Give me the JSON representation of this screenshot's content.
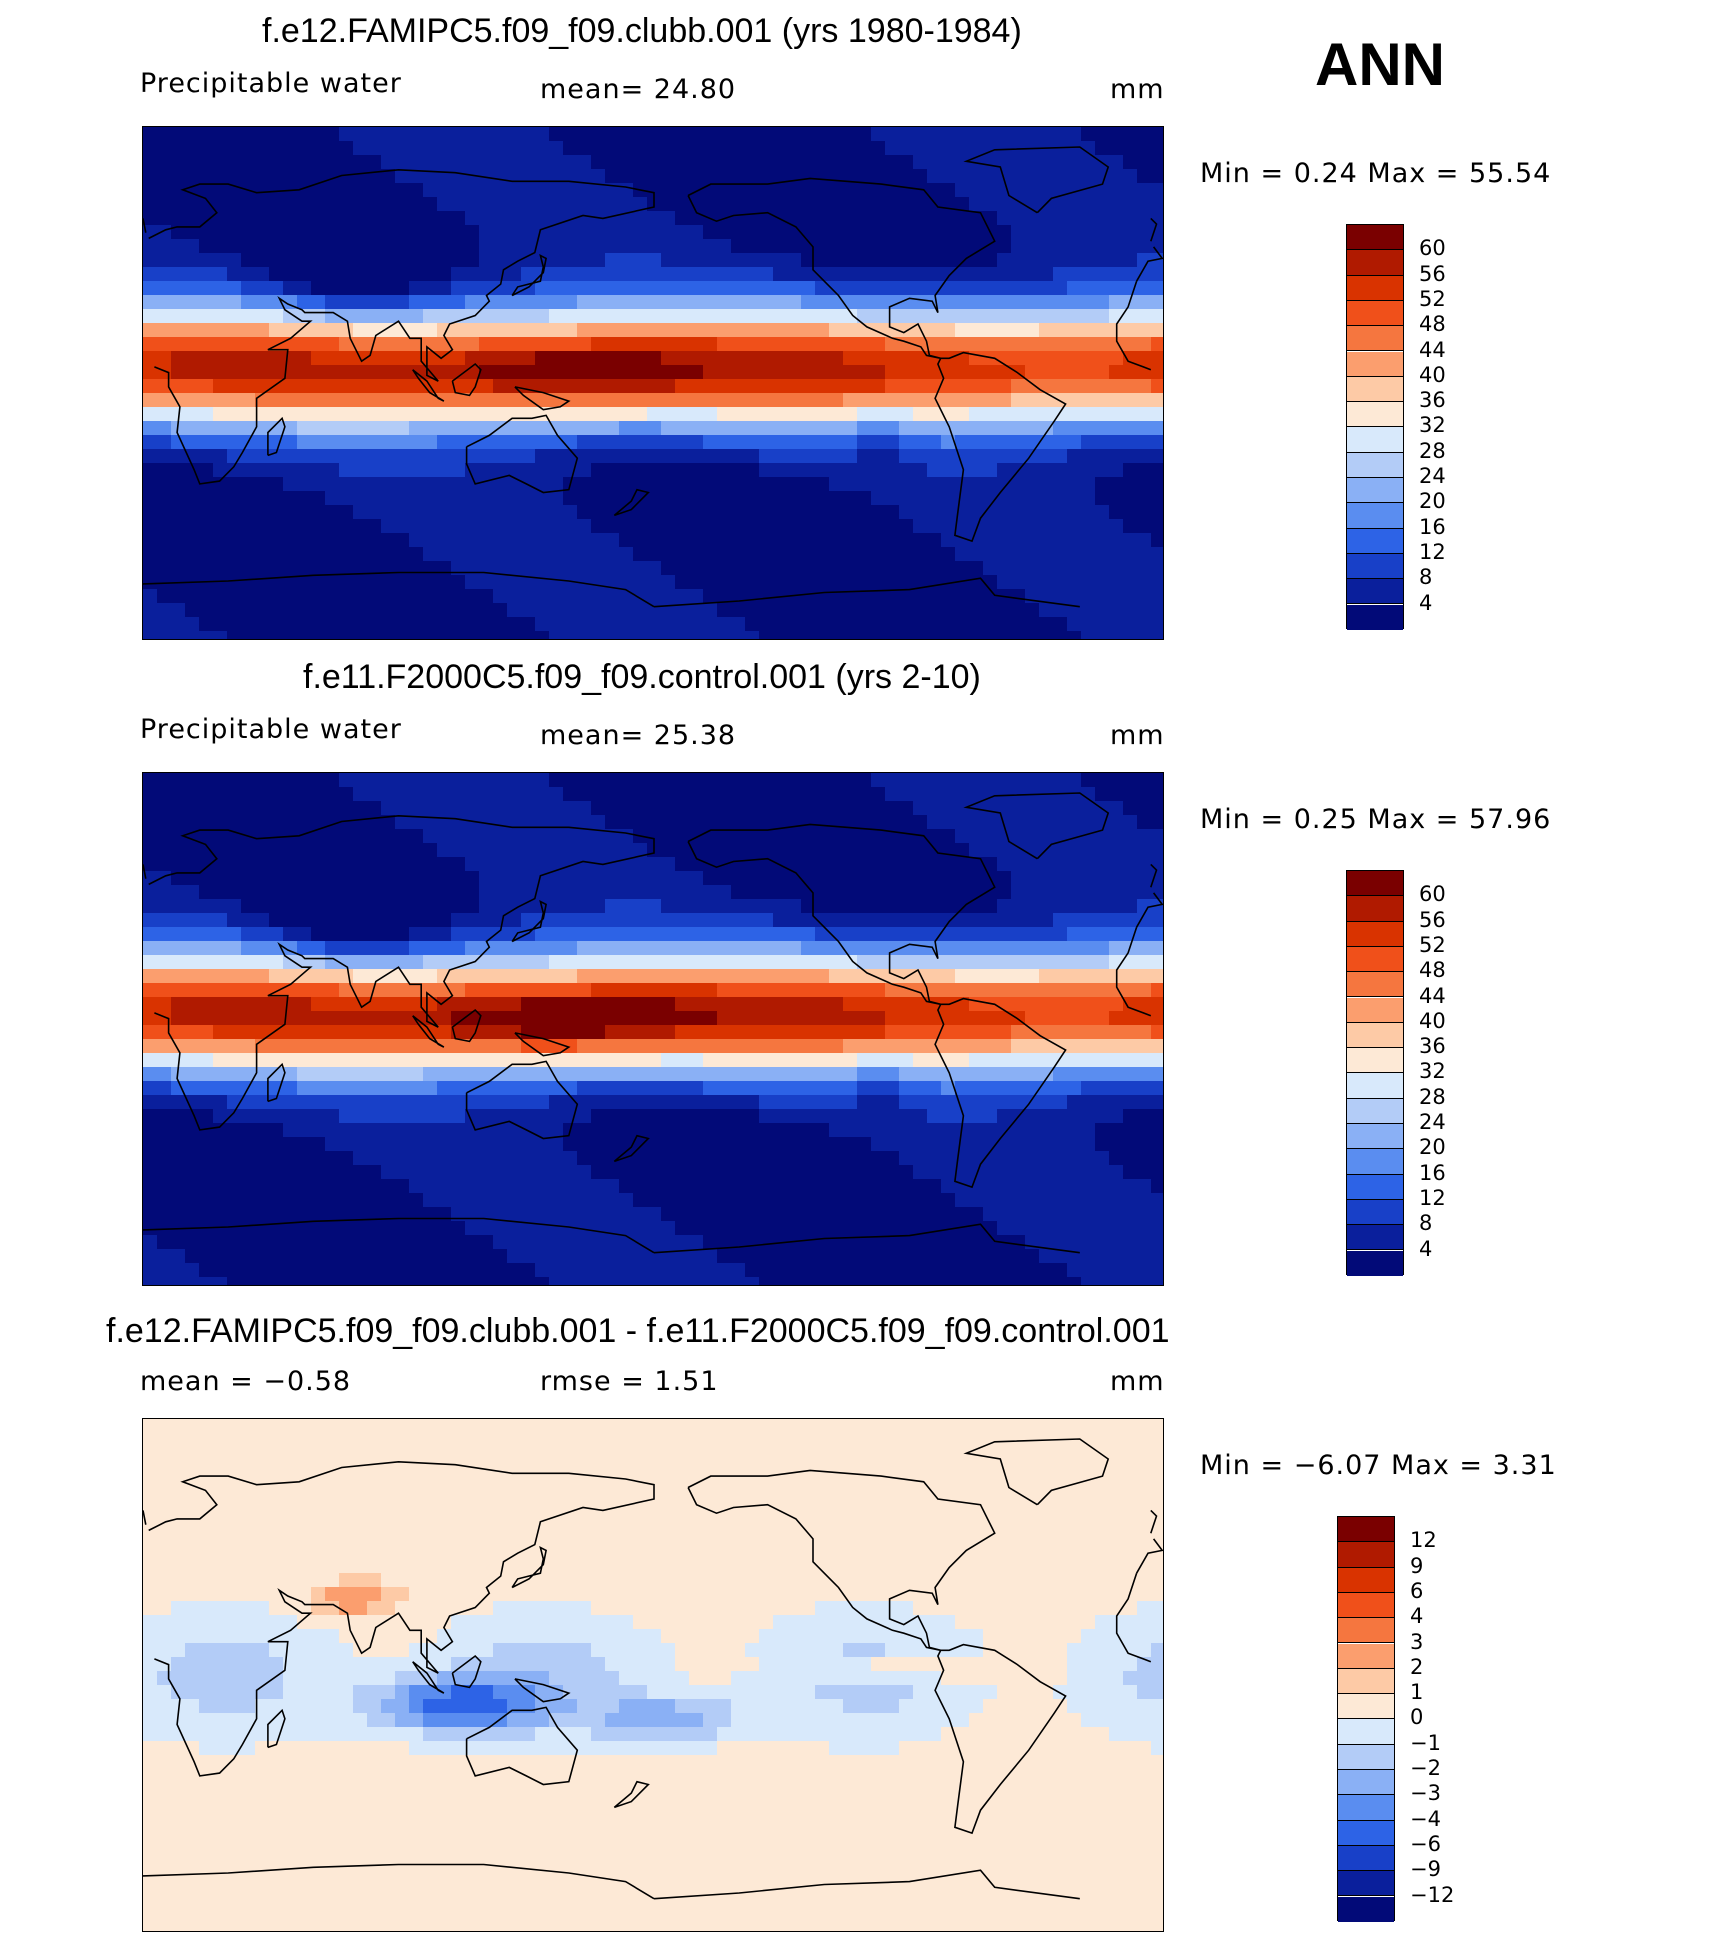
{
  "season": "ANN",
  "panels": [
    {
      "id": "top",
      "title": "f.e12.FAMIPC5.f09_f09.clubb.001 (yrs 1980-1984)",
      "left_label": "Precipitable  water",
      "mid_label": "mean=   24.80",
      "units": "mm",
      "minmax": "Min  =     0.24  Max  =    55.54",
      "colorbar": {
        "labels": [
          "60",
          "56",
          "52",
          "48",
          "44",
          "40",
          "36",
          "32",
          "28",
          "24",
          "20",
          "16",
          "12",
          "8",
          "4"
        ],
        "colors": [
          "#7a0000",
          "#b01a00",
          "#d93300",
          "#f0501a",
          "#f5763f",
          "#fb9e6e",
          "#fdcaa6",
          "#fde9d6",
          "#d8e9fb",
          "#b3ccf7",
          "#8ab0f5",
          "#5a8df0",
          "#2d63e6",
          "#1840c8",
          "#0a1f9c",
          "#020a78"
        ]
      }
    },
    {
      "id": "middle",
      "title": "f.e11.F2000C5.f09_f09.control.001 (yrs 2-10)",
      "left_label": "Precipitable  water",
      "mid_label": "mean=   25.38",
      "units": "mm",
      "minmax": "Min  =     0.25  Max  =    57.96",
      "colorbar": {
        "labels": [
          "60",
          "56",
          "52",
          "48",
          "44",
          "40",
          "36",
          "32",
          "28",
          "24",
          "20",
          "16",
          "12",
          "8",
          "4"
        ],
        "colors": [
          "#7a0000",
          "#b01a00",
          "#d93300",
          "#f0501a",
          "#f5763f",
          "#fb9e6e",
          "#fdcaa6",
          "#fde9d6",
          "#d8e9fb",
          "#b3ccf7",
          "#8ab0f5",
          "#5a8df0",
          "#2d63e6",
          "#1840c8",
          "#0a1f9c",
          "#020a78"
        ]
      }
    },
    {
      "id": "bottom",
      "title": "f.e12.FAMIPC5.f09_f09.clubb.001 - f.e11.F2000C5.f09_f09.control.001",
      "left_label": "mean  =    −0.58",
      "mid_label": "rmse  =     1.51",
      "units": "mm",
      "minmax": "Min  =    −6.07  Max  =     3.31",
      "colorbar": {
        "labels": [
          "12",
          "9",
          "6",
          "4",
          "3",
          "2",
          "1",
          "0",
          "−1",
          "−2",
          "−3",
          "−4",
          "−6",
          "−9",
          "−12"
        ],
        "colors": [
          "#7a0000",
          "#b01a00",
          "#d93300",
          "#f0501a",
          "#f5763f",
          "#fb9e6e",
          "#fdcaa6",
          "#fde9d6",
          "#d8e9fb",
          "#b3ccf7",
          "#8ab0f5",
          "#5a8df0",
          "#2d63e6",
          "#1840c8",
          "#0a1f9c",
          "#020a78"
        ]
      }
    }
  ]
}
